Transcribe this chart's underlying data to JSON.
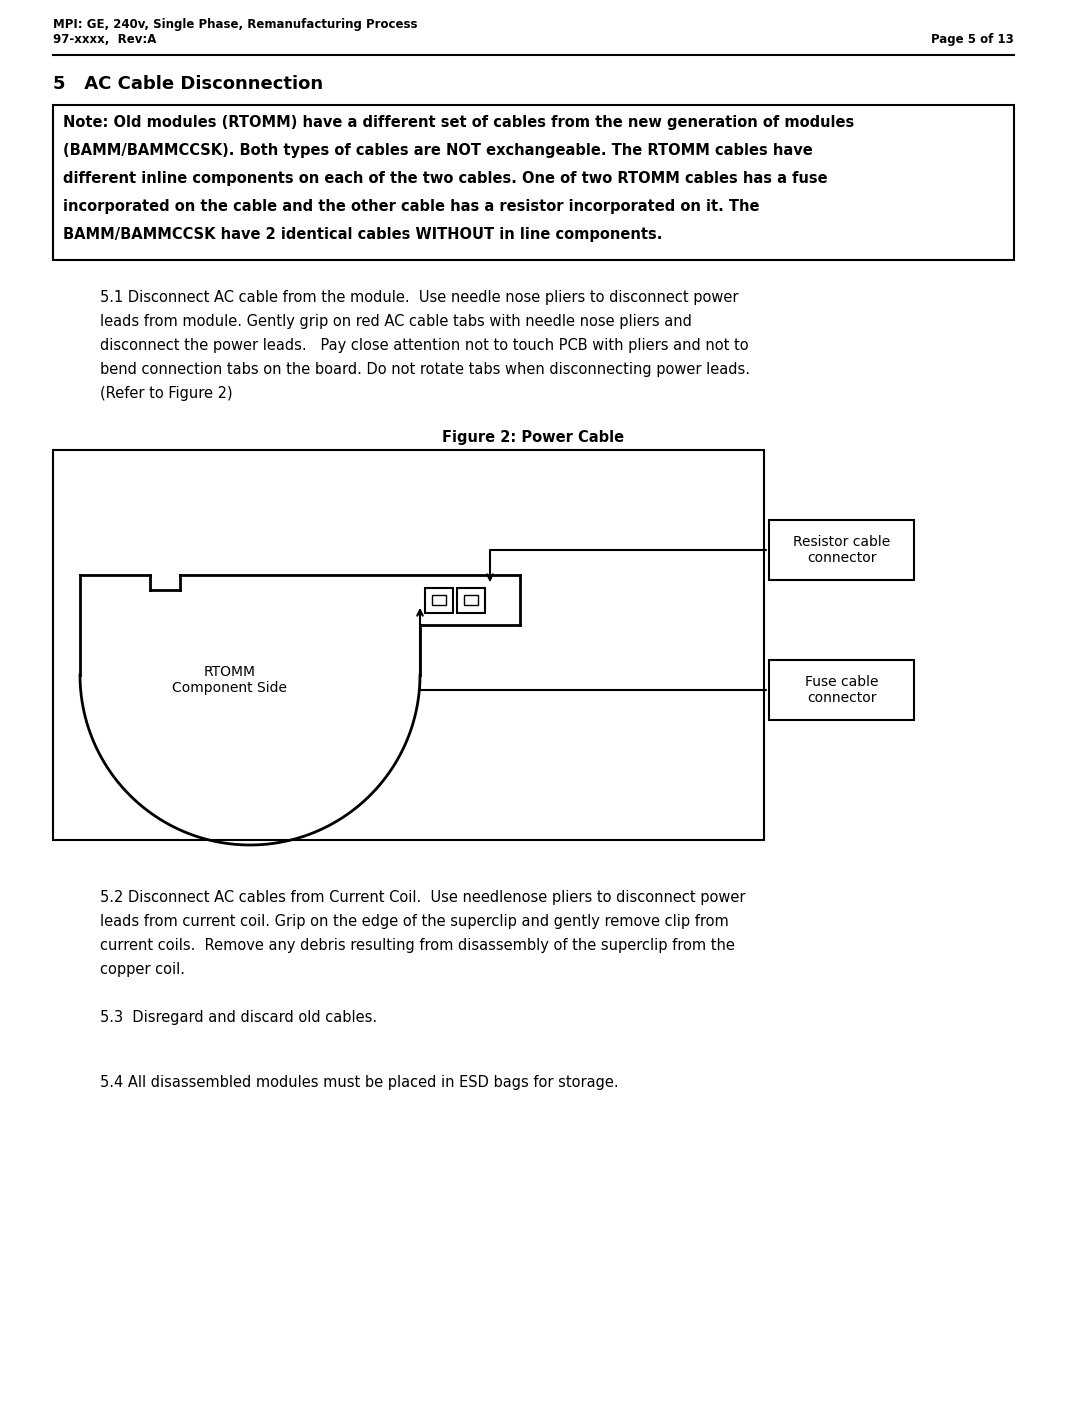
{
  "page_title_line1": "MPI: GE, 240v, Single Phase, Remanufacturing Process",
  "page_title_line2": "97-xxxx,  Rev:A",
  "page_number": "Page 5 of 13",
  "section_title": "5   AC Cable Disconnection",
  "note_text": "Note: Old modules (RTOMM) have a different set of cables from the new generation of modules\n(BAMM/BAMMCCSK). Both types of cables are NOT exchangeable. The RTOMM cables have\ndifferent inline components on each of the two cables. One of two RTOMM cables has a fuse\nincorporated on the cable and the other cable has a resistor incorporated on it. The\nBAMM/BAMMCCSK have 2 identical cables WITHOUT in line components.",
  "para_51": "5.1 Disconnect AC cable from the module.  Use needle nose pliers to disconnect power\nleads from module. Gently grip on red AC cable tabs with needle nose pliers and\ndisconnect the power leads.   Pay close attention not to touch PCB with pliers and not to\nbend connection tabs on the board. Do not rotate tabs when disconnecting power leads.\n(Refer to Figure 2)",
  "figure_caption": "Figure 2: Power Cable",
  "rtomm_label": "RTOMM\nComponent Side",
  "resistor_label": "Resistor cable\nconnector",
  "fuse_label": "Fuse cable\nconnector",
  "para_52": "5.2 Disconnect AC cables from Current Coil.  Use needlenose pliers to disconnect power\nleads from current coil. Grip on the edge of the superclip and gently remove clip from\ncurrent coils.  Remove any debris resulting from disassembly of the superclip from the\ncopper coil.",
  "para_53": "5.3  Disregard and discard old cables.",
  "para_54": "5.4 All disassembled modules must be placed in ESD bags for storage.",
  "bg_color": "#ffffff",
  "text_color": "#000000",
  "header_fontsize": 9,
  "section_fontsize": 13,
  "note_fontsize": 11,
  "body_fontsize": 11,
  "figure_caption_fontsize": 11
}
